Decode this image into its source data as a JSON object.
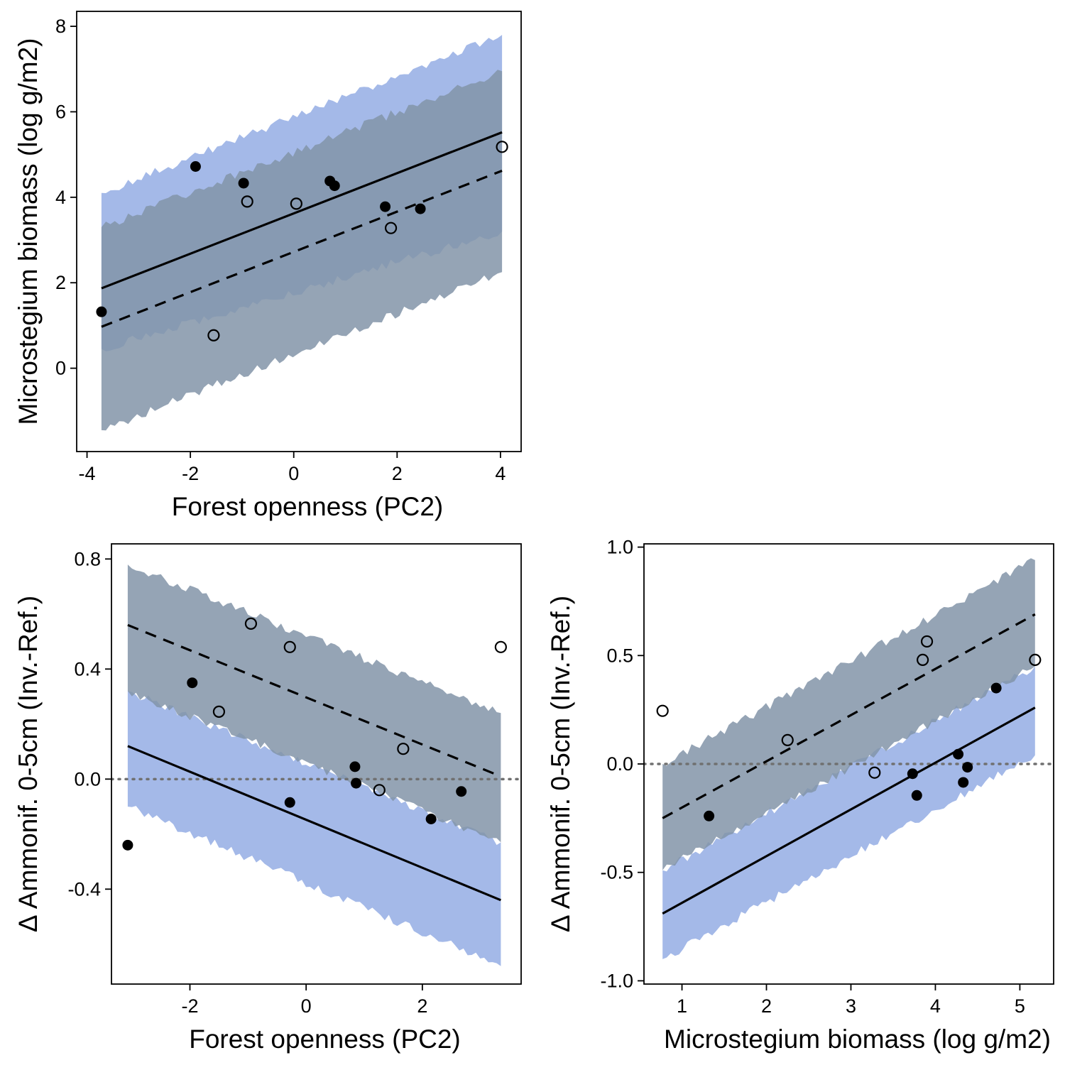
{
  "colors": {
    "blue_band": "#a4b9e8",
    "gray_band": "#8394a8",
    "overlap_band": "#8293aa",
    "line": "#000000",
    "zero_line": "#707070"
  },
  "chart_data": [
    {
      "id": "panel_a",
      "type": "scatter",
      "xlabel": "Forest openness (PC2)",
      "ylabel": "Microstegium biomass (log g/m2)",
      "xlim": [
        -4.2,
        4.4
      ],
      "ylim": [
        -1.95,
        8.35
      ],
      "xticks": [
        -4,
        -2,
        0,
        2,
        4
      ],
      "xtick_labels": [
        "-4",
        "-2",
        "0",
        "2",
        "4"
      ],
      "yticks": [
        0,
        2,
        4,
        6,
        8
      ],
      "ytick_labels": [
        "0",
        "2",
        "4",
        "6",
        "8"
      ],
      "zero_line": false,
      "band_x": [
        -3.72,
        4.03
      ],
      "bands": [
        {
          "name": "filled",
          "color": "blue",
          "lower": [
            0.45,
            3.2
          ],
          "upper": [
            4.1,
            7.8
          ]
        },
        {
          "name": "open",
          "color": "gray",
          "lower": [
            -1.45,
            2.25
          ],
          "upper": [
            3.3,
            6.95
          ]
        }
      ],
      "lines": [
        {
          "name": "filled",
          "style": "solid",
          "x": [
            -3.72,
            4.03
          ],
          "y": [
            1.87,
            5.52
          ]
        },
        {
          "name": "open",
          "style": "dashed",
          "x": [
            -3.72,
            4.03
          ],
          "y": [
            0.97,
            4.62
          ]
        }
      ],
      "points": [
        {
          "x": -3.72,
          "y": 1.32,
          "filled": true
        },
        {
          "x": -1.9,
          "y": 4.72,
          "filled": true
        },
        {
          "x": -1.55,
          "y": 0.77,
          "filled": false
        },
        {
          "x": -0.97,
          "y": 4.33,
          "filled": true
        },
        {
          "x": -0.9,
          "y": 3.9,
          "filled": false
        },
        {
          "x": 0.05,
          "y": 3.85,
          "filled": false
        },
        {
          "x": 0.7,
          "y": 4.38,
          "filled": true
        },
        {
          "x": 0.79,
          "y": 4.27,
          "filled": true
        },
        {
          "x": 1.77,
          "y": 3.78,
          "filled": true
        },
        {
          "x": 1.88,
          "y": 3.28,
          "filled": false
        },
        {
          "x": 2.45,
          "y": 3.73,
          "filled": true
        },
        {
          "x": 4.03,
          "y": 5.18,
          "filled": false
        }
      ]
    },
    {
      "id": "panel_b",
      "type": "scatter",
      "xlabel": "Forest openness (PC2)",
      "ylabel": "Δ Ammonif. 0-5cm (Inv.-Ref.)",
      "xlim": [
        -3.35,
        3.7
      ],
      "ylim": [
        -0.745,
        0.855
      ],
      "xticks": [
        -2,
        0,
        2
      ],
      "xtick_labels": [
        "-2",
        "0",
        "2"
      ],
      "yticks": [
        -0.4,
        0.0,
        0.4,
        0.8
      ],
      "ytick_labels": [
        "-0.4",
        "0.0",
        "0.4",
        "0.8"
      ],
      "zero_line": true,
      "band_x": [
        -3.07,
        3.35
      ],
      "bands": [
        {
          "name": "filled",
          "color": "blue",
          "lower": [
            -0.1,
            -0.68
          ],
          "upper": [
            0.32,
            -0.23
          ]
        },
        {
          "name": "open",
          "color": "gray",
          "lower": [
            0.32,
            -0.23
          ],
          "upper": [
            0.78,
            0.24
          ]
        }
      ],
      "lines": [
        {
          "name": "filled",
          "style": "solid",
          "x": [
            -3.07,
            3.35
          ],
          "y": [
            0.12,
            -0.44
          ]
        },
        {
          "name": "open",
          "style": "dashed",
          "x": [
            -3.07,
            3.35
          ],
          "y": [
            0.56,
            0.01
          ]
        }
      ],
      "points": [
        {
          "x": -3.07,
          "y": -0.24,
          "filled": true
        },
        {
          "x": -1.96,
          "y": 0.35,
          "filled": true
        },
        {
          "x": -1.5,
          "y": 0.245,
          "filled": false
        },
        {
          "x": -0.95,
          "y": 0.565,
          "filled": false
        },
        {
          "x": -0.28,
          "y": 0.48,
          "filled": false
        },
        {
          "x": -0.28,
          "y": -0.085,
          "filled": true
        },
        {
          "x": 0.84,
          "y": 0.045,
          "filled": true
        },
        {
          "x": 0.86,
          "y": -0.015,
          "filled": true
        },
        {
          "x": 1.26,
          "y": -0.04,
          "filled": false
        },
        {
          "x": 1.67,
          "y": 0.11,
          "filled": false
        },
        {
          "x": 2.15,
          "y": -0.145,
          "filled": true
        },
        {
          "x": 2.67,
          "y": -0.045,
          "filled": true
        },
        {
          "x": 3.35,
          "y": 0.48,
          "filled": false
        }
      ]
    },
    {
      "id": "panel_c",
      "type": "scatter",
      "xlabel": "Microstegium biomass (log g/m2)",
      "ylabel": "Δ Ammonif. 0-5cm (Inv.-Ref.)",
      "xlim": [
        0.55,
        5.4
      ],
      "ylim": [
        -1.015,
        1.015
      ],
      "xticks": [
        1,
        2,
        3,
        4,
        5
      ],
      "xtick_labels": [
        "1",
        "2",
        "3",
        "4",
        "5"
      ],
      "yticks": [
        -1.0,
        -0.5,
        0.0,
        0.5,
        1.0
      ],
      "ytick_labels": [
        "-1.0",
        "-0.5",
        "0.0",
        "0.5",
        "1.0"
      ],
      "zero_line": true,
      "band_x": [
        0.77,
        5.18
      ],
      "bands": [
        {
          "name": "filled",
          "color": "blue",
          "lower": [
            -0.9,
            0.04
          ],
          "upper": [
            -0.49,
            0.45
          ]
        },
        {
          "name": "open",
          "color": "gray",
          "lower": [
            -0.49,
            0.45
          ],
          "upper": [
            0.0,
            0.94
          ]
        }
      ],
      "lines": [
        {
          "name": "filled",
          "style": "solid",
          "x": [
            0.77,
            5.18
          ],
          "y": [
            -0.69,
            0.26
          ]
        },
        {
          "name": "open",
          "style": "dashed",
          "x": [
            0.77,
            5.18
          ],
          "y": [
            -0.25,
            0.69
          ]
        }
      ],
      "points": [
        {
          "x": 0.77,
          "y": 0.245,
          "filled": false
        },
        {
          "x": 1.32,
          "y": -0.24,
          "filled": true
        },
        {
          "x": 2.25,
          "y": 0.11,
          "filled": false
        },
        {
          "x": 3.28,
          "y": -0.04,
          "filled": false
        },
        {
          "x": 3.73,
          "y": -0.045,
          "filled": true
        },
        {
          "x": 3.78,
          "y": -0.145,
          "filled": true
        },
        {
          "x": 3.85,
          "y": 0.48,
          "filled": false
        },
        {
          "x": 3.9,
          "y": 0.565,
          "filled": false
        },
        {
          "x": 4.27,
          "y": 0.045,
          "filled": true
        },
        {
          "x": 4.33,
          "y": -0.085,
          "filled": true
        },
        {
          "x": 4.38,
          "y": -0.015,
          "filled": true
        },
        {
          "x": 4.72,
          "y": 0.35,
          "filled": true
        },
        {
          "x": 5.18,
          "y": 0.48,
          "filled": false
        }
      ]
    }
  ]
}
